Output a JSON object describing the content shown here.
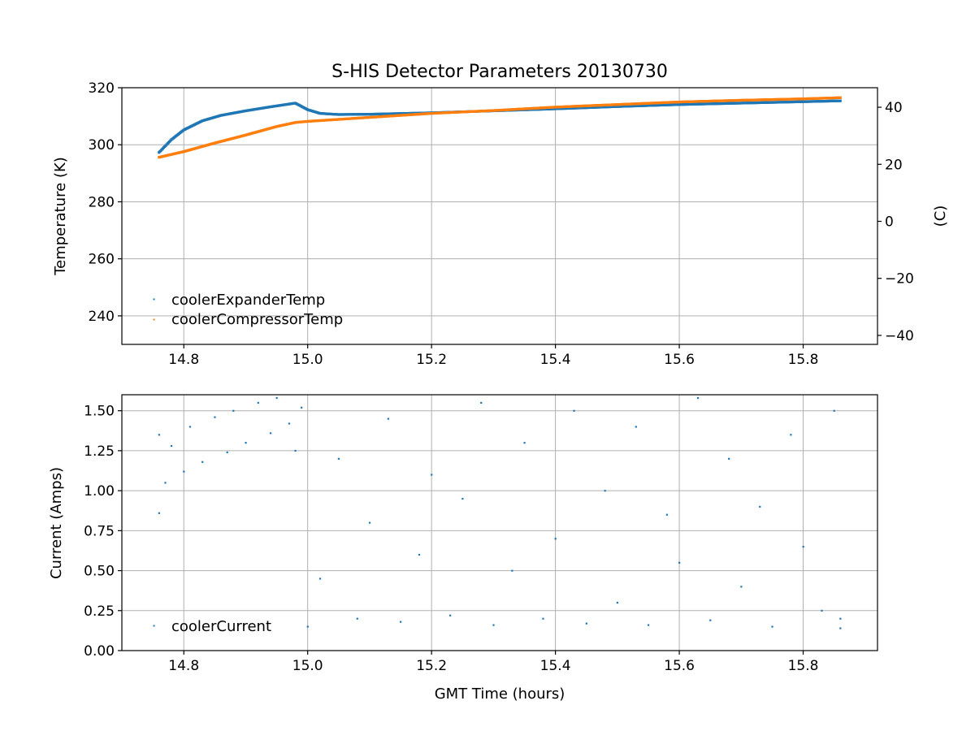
{
  "chart_data": [
    {
      "type": "scatter",
      "title": "S-HIS Detector Parameters 20130730",
      "ylabel": "Temperature (K)",
      "y2label": "(C)",
      "xlim": [
        14.7,
        15.92
      ],
      "ylim": [
        230,
        320
      ],
      "y2lim": [
        -43.15,
        46.85
      ],
      "xticks": [
        "14.8",
        "15.0",
        "15.2",
        "15.4",
        "15.6",
        "15.8"
      ],
      "yticks": [
        "240",
        "260",
        "280",
        "300",
        "320"
      ],
      "y2ticks": [
        "−40",
        "−20",
        "0",
        "20",
        "40"
      ],
      "grid": true,
      "legend_position": "lower-left",
      "series": [
        {
          "name": "coolerExpanderTemp",
          "color": "#1f77b4",
          "x": [
            14.76,
            14.78,
            14.8,
            14.83,
            14.86,
            14.9,
            14.94,
            14.98,
            15.0,
            15.02,
            15.05,
            15.1,
            15.2,
            15.3,
            15.4,
            15.5,
            15.6,
            15.7,
            15.8,
            15.86
          ],
          "y": [
            297.3,
            301.8,
            305.2,
            308.4,
            310.3,
            311.9,
            313.3,
            314.6,
            312.3,
            311.0,
            310.6,
            310.7,
            311.2,
            311.9,
            312.6,
            313.4,
            314.1,
            314.6,
            315.1,
            315.4
          ]
        },
        {
          "name": "coolerCompressorTemp",
          "color": "#ff7f0e",
          "x": [
            14.76,
            14.8,
            14.85,
            14.9,
            14.95,
            14.98,
            15.0,
            15.1,
            15.2,
            15.3,
            15.4,
            15.5,
            15.6,
            15.7,
            15.8,
            15.86
          ],
          "y": [
            295.6,
            297.6,
            300.6,
            303.4,
            306.4,
            307.8,
            308.2,
            309.6,
            311.0,
            312.0,
            313.2,
            314.1,
            315.0,
            315.6,
            316.1,
            316.5
          ]
        }
      ]
    },
    {
      "type": "scatter",
      "ylabel": "Current (Amps)",
      "xlabel": "GMT Time (hours)",
      "xlim": [
        14.7,
        15.92
      ],
      "ylim": [
        0.0,
        1.6
      ],
      "xticks": [
        "14.8",
        "15.0",
        "15.2",
        "15.4",
        "15.6",
        "15.8"
      ],
      "yticks": [
        "0.00",
        "0.25",
        "0.50",
        "0.75",
        "1.00",
        "1.25",
        "1.50"
      ],
      "grid": true,
      "legend_position": "lower-left",
      "series": [
        {
          "name": "coolerCurrent",
          "color": "#1f77b4",
          "x": [
            14.76,
            14.76,
            14.77,
            14.78,
            14.8,
            14.81,
            14.83,
            14.85,
            14.87,
            14.88,
            14.9,
            14.92,
            14.94,
            14.95,
            14.97,
            14.98,
            14.99,
            15.0,
            15.02,
            15.05,
            15.08,
            15.1,
            15.13,
            15.15,
            15.18,
            15.2,
            15.23,
            15.25,
            15.28,
            15.3,
            15.33,
            15.35,
            15.38,
            15.4,
            15.43,
            15.45,
            15.48,
            15.5,
            15.53,
            15.55,
            15.58,
            15.6,
            15.63,
            15.65,
            15.68,
            15.7,
            15.73,
            15.75,
            15.78,
            15.8,
            15.83,
            15.85,
            15.86,
            15.86
          ],
          "y": [
            0.86,
            1.35,
            1.05,
            1.28,
            1.12,
            1.4,
            1.18,
            1.46,
            1.24,
            1.5,
            1.3,
            1.55,
            1.36,
            1.58,
            1.42,
            1.25,
            1.52,
            0.15,
            0.45,
            1.2,
            0.2,
            0.8,
            1.45,
            0.18,
            0.6,
            1.1,
            0.22,
            0.95,
            1.55,
            0.16,
            0.5,
            1.3,
            0.2,
            0.7,
            1.5,
            0.17,
            1.0,
            0.3,
            1.4,
            0.16,
            0.85,
            0.55,
            1.58,
            0.19,
            1.2,
            0.4,
            0.9,
            0.15,
            1.35,
            0.65,
            0.25,
            1.5,
            0.14,
            0.2
          ]
        }
      ]
    }
  ]
}
